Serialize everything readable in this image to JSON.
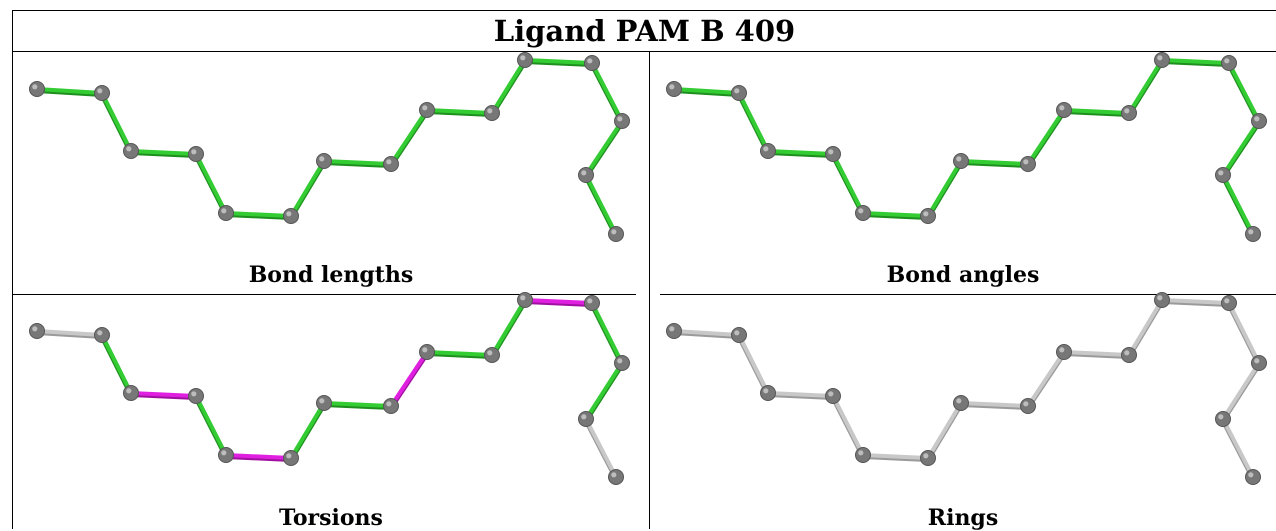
{
  "title": "Ligand PAM B 409",
  "panels": [
    {
      "caption": "Bond lengths",
      "bond_colors": [
        "green",
        "green",
        "green",
        "green",
        "green",
        "green",
        "green",
        "green",
        "green",
        "green",
        "green",
        "green",
        "green",
        "green",
        "green",
        "green"
      ]
    },
    {
      "caption": "Bond angles",
      "bond_colors": [
        "green",
        "green",
        "green",
        "green",
        "green",
        "green",
        "green",
        "green",
        "green",
        "green",
        "green",
        "green",
        "green",
        "green",
        "green",
        "green"
      ]
    },
    {
      "caption": "Torsions",
      "bond_colors": [
        "grey",
        "green",
        "magenta",
        "green",
        "magenta",
        "green",
        "green",
        "magenta",
        "green",
        "green",
        "magenta",
        "green",
        "green",
        "grey",
        "grey",
        "grey"
      ]
    },
    {
      "caption": "Rings",
      "bond_colors": [
        "grey",
        "grey",
        "grey",
        "grey",
        "grey",
        "grey",
        "grey",
        "grey",
        "grey",
        "grey",
        "grey",
        "grey",
        "grey",
        "grey",
        "grey",
        "grey"
      ]
    }
  ],
  "colors": {
    "green": "#33cc33",
    "magenta": "#e020e0",
    "grey": "#c8c8c8",
    "atom": "#777777"
  }
}
